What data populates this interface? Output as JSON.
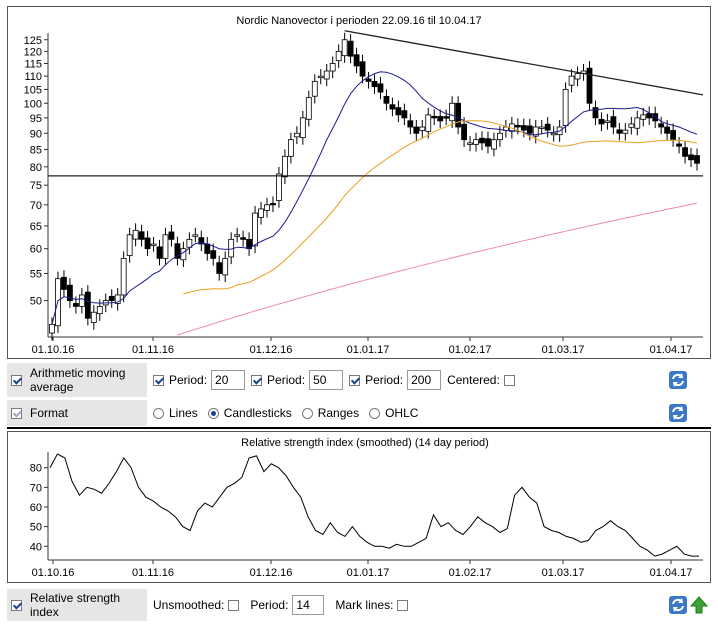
{
  "main_chart": {
    "title": "Nordic Nanovector i perioden 22.09.16 til 10.04.17",
    "y_ticks": [
      "125",
      "120",
      "115",
      "110",
      "105",
      "100",
      "95",
      "90",
      "85",
      "80",
      "75",
      "70",
      "65",
      "60",
      "55",
      "50"
    ],
    "x_ticks": [
      "01.10.16",
      "01.11.16",
      "01.12.16",
      "01.01.17",
      "01.02.17",
      "01.03.17",
      "01.04.17"
    ]
  },
  "chart_data": [
    {
      "type": "line",
      "title": "Nordic Nanovector i perioden 22.09.16 til 10.04.17",
      "subtype": "candlestick with moving averages and trend lines",
      "y_scale": "log",
      "ylim": [
        44,
        128
      ],
      "x_ticks": [
        "01.10.16",
        "01.11.16",
        "01.12.16",
        "01.01.17",
        "01.02.17",
        "01.03.17",
        "01.04.17"
      ],
      "close": [
        46,
        54,
        52,
        50,
        49,
        51,
        47,
        48,
        49,
        50,
        50,
        51,
        58,
        63,
        64,
        62,
        60,
        61,
        58,
        63,
        62,
        58,
        60,
        62,
        63,
        61,
        59,
        58,
        55,
        58,
        62,
        63,
        62,
        60,
        68,
        69,
        70,
        70,
        78,
        83,
        88,
        90,
        95,
        102,
        108,
        110,
        112,
        115,
        120,
        125,
        118,
        114,
        110,
        108,
        106,
        104,
        100,
        98,
        96,
        95,
        92,
        90,
        92,
        96,
        95,
        94,
        95,
        100,
        92,
        88,
        87,
        88,
        87,
        86,
        88,
        90,
        92,
        93,
        92,
        91,
        90,
        92,
        92,
        91,
        90,
        92,
        105,
        110,
        111,
        112,
        100,
        95,
        93,
        94,
        92,
        90,
        91,
        93,
        95,
        96,
        95,
        94,
        92,
        90,
        88,
        86,
        83,
        82,
        81
      ],
      "series": [
        {
          "name": "Period: 20",
          "color": "#1a1a8c"
        },
        {
          "name": "Period: 50",
          "color": "#e8a020"
        },
        {
          "name": "Period: 200",
          "color": "#f08aa8"
        }
      ],
      "support_line": 77.5,
      "resistance_line": {
        "from": 129,
        "to": 103
      }
    },
    {
      "type": "line",
      "title": "Relative strength index (smoothed) (14 day period)",
      "ylim": [
        33,
        88
      ],
      "y_ticks": [
        40,
        50,
        60,
        70,
        80
      ],
      "x_ticks": [
        "01.10.16",
        "01.11.16",
        "01.12.16",
        "01.01.17",
        "01.02.17",
        "01.03.17",
        "01.04.17"
      ],
      "values": [
        80,
        87,
        85,
        73,
        66,
        70,
        69,
        67,
        72,
        78,
        85,
        80,
        70,
        65,
        63,
        60,
        58,
        55,
        50,
        48,
        58,
        62,
        60,
        65,
        70,
        72,
        75,
        85,
        86,
        78,
        82,
        80,
        76,
        70,
        65,
        55,
        48,
        46,
        52,
        47,
        45,
        50,
        45,
        42,
        40,
        40,
        39,
        41,
        40,
        40,
        42,
        44,
        56,
        50,
        52,
        48,
        46,
        50,
        55,
        52,
        50,
        47,
        49,
        66,
        70,
        65,
        62,
        50,
        48,
        47,
        45,
        44,
        42,
        43,
        48,
        50,
        53,
        50,
        48,
        44,
        40,
        38,
        35,
        36,
        38,
        40,
        36,
        35,
        35
      ]
    }
  ],
  "ma_row": {
    "label": "Arithmetic moving average",
    "period_label": "Period:",
    "p1": "20",
    "p2": "50",
    "p3": "200",
    "centered_label": "Centered:"
  },
  "format_row": {
    "label": "Format",
    "options": [
      "Lines",
      "Candlesticks",
      "Ranges",
      "OHLC"
    ],
    "selected": "Candlesticks"
  },
  "rsi_chart": {
    "title": "Relative strength index (smoothed) (14 day period)",
    "y_ticks": [
      "80",
      "70",
      "60",
      "50",
      "40"
    ],
    "x_ticks": [
      "01.10.16",
      "01.11.16",
      "01.12.16",
      "01.01.17",
      "01.02.17",
      "01.03.17",
      "01.04.17"
    ]
  },
  "rsi_row": {
    "label": "Relative strength index",
    "unsmoothed_label": "Unsmoothed:",
    "period_label": "Period:",
    "period": "14",
    "mark_lines_label": "Mark lines:"
  }
}
